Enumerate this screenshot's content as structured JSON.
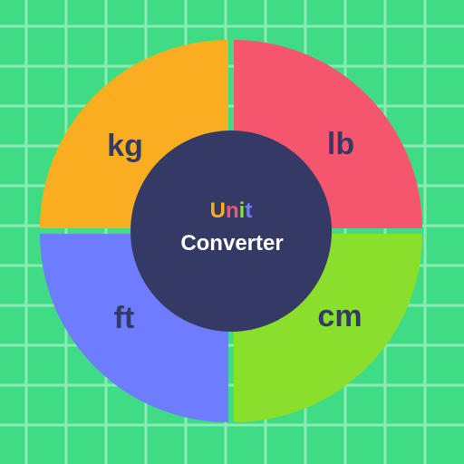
{
  "background": {
    "color": "#3fdc85",
    "grid_color": "#8aecb5"
  },
  "quadrants": [
    {
      "id": "kg",
      "label": "kg",
      "color": "#f9ae21"
    },
    {
      "id": "lb",
      "label": "lb",
      "color": "#f6566d"
    },
    {
      "id": "ft",
      "label": "ft",
      "color": "#6e7cff"
    },
    {
      "id": "cm",
      "label": "cm",
      "color": "#8ade2c"
    }
  ],
  "label_color": "#343a64",
  "center": {
    "color": "#343a64",
    "title_letters": [
      {
        "char": "U",
        "color": "#f9ae21"
      },
      {
        "char": "n",
        "color": "#f6566d"
      },
      {
        "char": "i",
        "color": "#8ade2c"
      },
      {
        "char": "t",
        "color": "#6e7cff"
      }
    ],
    "subtitle": "Converter",
    "subtitle_color": "#ffffff"
  }
}
